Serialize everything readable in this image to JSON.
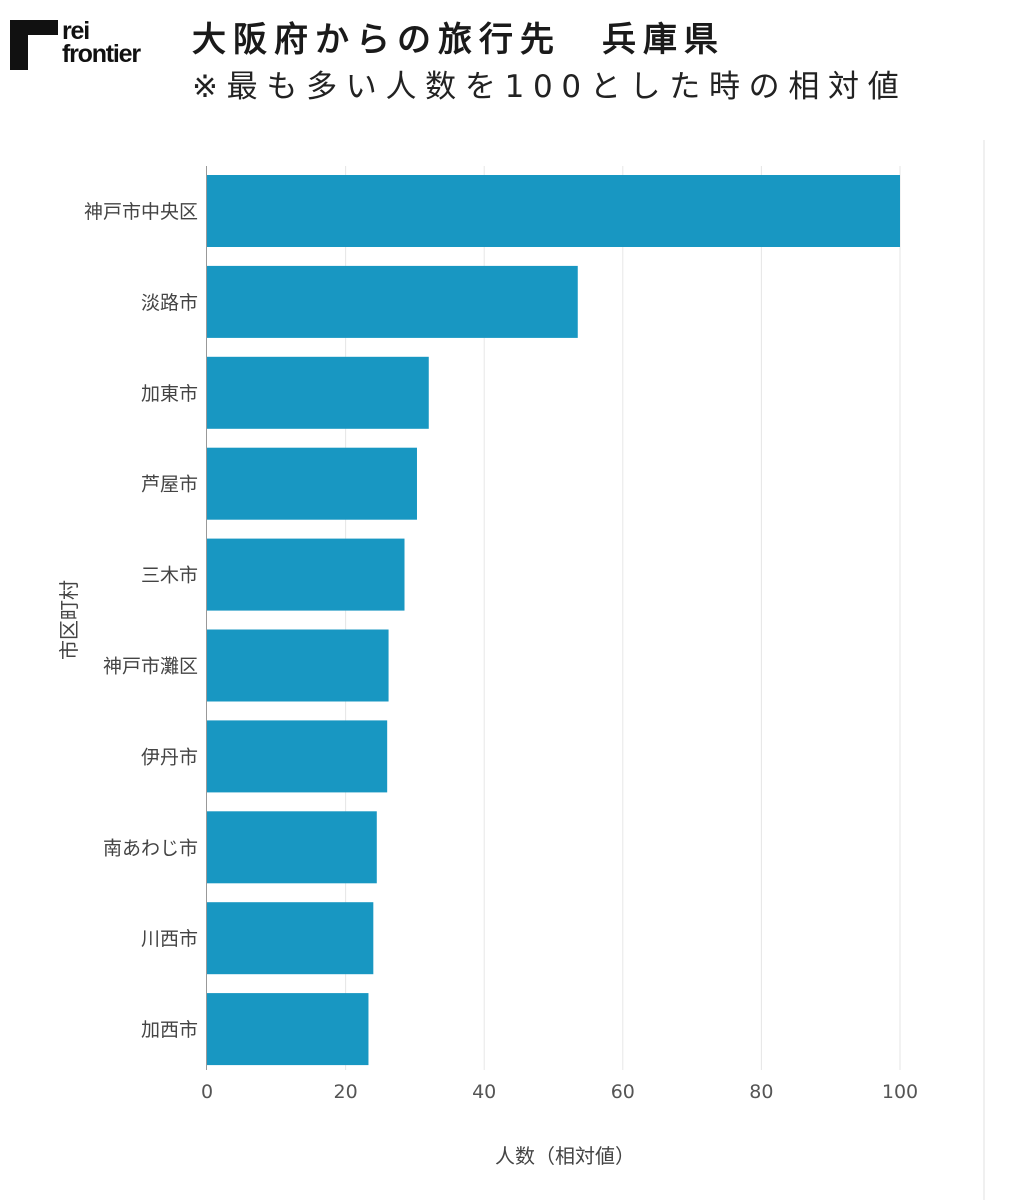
{
  "logo": {
    "line1": "rei",
    "line2": "frontier"
  },
  "title": "大阪府からの旅行先　兵庫県",
  "subtitle": "※最も多い人数を100とした時の相対値",
  "colors": {
    "bar": "#1897c2",
    "grid": "#e6e6e6",
    "axis": "#999999"
  },
  "chart_data": {
    "type": "bar",
    "orientation": "horizontal",
    "categories": [
      "神戸市中央区",
      "淡路市",
      "加東市",
      "芦屋市",
      "三木市",
      "神戸市灘区",
      "伊丹市",
      "南あわじ市",
      "川西市",
      "加西市"
    ],
    "values": [
      100,
      53.5,
      32,
      30.3,
      28.5,
      26.2,
      26,
      24.5,
      24,
      23.3
    ],
    "xlabel": "人数（相対値）",
    "ylabel": "市区町村",
    "xlim": [
      0,
      110
    ],
    "xticks": [
      "0",
      "20",
      "40",
      "60",
      "80",
      "100"
    ],
    "grid": true,
    "legend": "none"
  }
}
